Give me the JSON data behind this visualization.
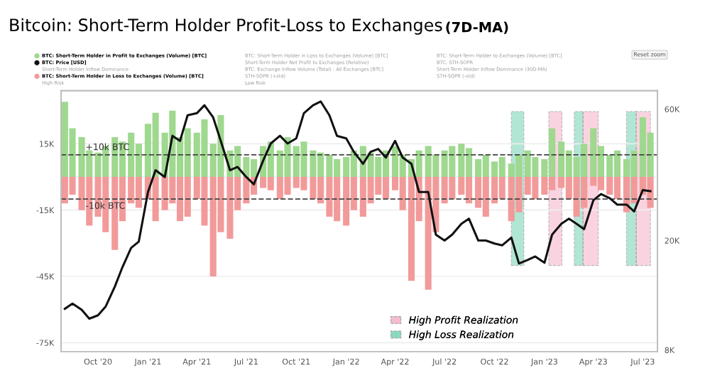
{
  "chart_data": {
    "type": "bar",
    "title": "Bitcoin: Short-Term Holder Profit-Loss to Exchanges",
    "subtitle": "(7D-MA)",
    "x": [
      "2020-08-01",
      "2020-08-15",
      "2020-09-01",
      "2020-09-15",
      "2020-10-01",
      "2020-10-15",
      "2020-11-01",
      "2020-11-15",
      "2020-12-01",
      "2020-12-15",
      "2021-01-01",
      "2021-01-15",
      "2021-02-01",
      "2021-02-15",
      "2021-03-01",
      "2021-03-15",
      "2021-04-01",
      "2021-04-15",
      "2021-05-01",
      "2021-05-15",
      "2021-06-01",
      "2021-06-15",
      "2021-07-01",
      "2021-07-15",
      "2021-08-01",
      "2021-08-15",
      "2021-09-01",
      "2021-09-15",
      "2021-10-01",
      "2021-10-15",
      "2021-11-01",
      "2021-11-15",
      "2021-12-01",
      "2021-12-15",
      "2022-01-01",
      "2022-01-15",
      "2022-02-01",
      "2022-02-15",
      "2022-03-01",
      "2022-03-15",
      "2022-04-01",
      "2022-04-15",
      "2022-05-01",
      "2022-05-15",
      "2022-06-01",
      "2022-06-15",
      "2022-07-01",
      "2022-07-15",
      "2022-08-01",
      "2022-08-15",
      "2022-09-01",
      "2022-09-15",
      "2022-10-01",
      "2022-10-15",
      "2022-11-01",
      "2022-11-15",
      "2022-12-01",
      "2022-12-15",
      "2023-01-01",
      "2023-01-15",
      "2023-02-01",
      "2023-02-15",
      "2023-03-01",
      "2023-03-15",
      "2023-04-01",
      "2023-04-15",
      "2023-05-01",
      "2023-05-15",
      "2023-06-01",
      "2023-06-15",
      "2023-07-01",
      "2023-07-15"
    ],
    "series": [
      {
        "name": "BTC: Short-Term Holder in Profit to Exchanges (Volume) [BTC]",
        "color": "#9fd88f",
        "values": [
          34000,
          22000,
          18000,
          12000,
          11000,
          14000,
          18000,
          16000,
          20000,
          15000,
          24000,
          29000,
          20000,
          30000,
          18000,
          22000,
          20000,
          26000,
          15000,
          28000,
          12000,
          14000,
          9000,
          8000,
          14000,
          16000,
          12000,
          18000,
          14000,
          16000,
          12000,
          11000,
          10000,
          8000,
          9000,
          12000,
          14000,
          11000,
          9000,
          12000,
          14000,
          10000,
          8000,
          12000,
          14000,
          10000,
          12000,
          14000,
          15000,
          13000,
          8000,
          10000,
          7000,
          9000,
          6000,
          10000,
          12000,
          9000,
          8000,
          22000,
          16000,
          12000,
          9000,
          15000,
          22000,
          14000,
          10000,
          12000,
          8000,
          12000,
          27000,
          20000
        ]
      },
      {
        "name": "BTC: Short-Term Holder in Loss to Exchanges (Volume) [BTC]",
        "color": "#f29a9a",
        "values": [
          -12000,
          -8000,
          -15000,
          -22000,
          -18000,
          -25000,
          -33000,
          -20000,
          -12000,
          -14000,
          -10000,
          -20000,
          -15000,
          -12000,
          -20000,
          -18000,
          -10000,
          -22000,
          -45000,
          -25000,
          -28000,
          -15000,
          -12000,
          -8000,
          -5000,
          -6000,
          -10000,
          -8000,
          -5000,
          -6000,
          -10000,
          -12000,
          -18000,
          -20000,
          -22000,
          -15000,
          -18000,
          -12000,
          -8000,
          -10000,
          -6000,
          -15000,
          -47000,
          -20000,
          -51000,
          -25000,
          -12000,
          -10000,
          -8000,
          -12000,
          -14000,
          -18000,
          -12000,
          -10000,
          -20000,
          -16000,
          -8000,
          -10000,
          -8000,
          -6000,
          -5000,
          -10000,
          -18000,
          -14000,
          -4000,
          -6000,
          -8000,
          -10000,
          -16000,
          -12000,
          -8000,
          -14000
        ]
      },
      {
        "name": "BTC: Price [USD]",
        "type": "line",
        "axis": "y2",
        "color": "#111111",
        "values": [
          11300,
          11800,
          11200,
          10400,
          10700,
          11500,
          13600,
          16000,
          18800,
          19800,
          30000,
          36000,
          34000,
          48000,
          46000,
          57000,
          58000,
          62000,
          56000,
          46000,
          36000,
          37000,
          34000,
          32000,
          39000,
          45000,
          48000,
          45000,
          47000,
          58000,
          62000,
          64000,
          57000,
          48000,
          47000,
          42000,
          38000,
          42000,
          43000,
          40000,
          46000,
          40000,
          38000,
          30000,
          30000,
          21000,
          20000,
          21000,
          23000,
          24000,
          20000,
          20000,
          19500,
          19200,
          20500,
          16500,
          17000,
          17500,
          16600,
          21000,
          23000,
          24000,
          23000,
          22000,
          28000,
          29500,
          28500,
          27000,
          27000,
          25500,
          30500,
          30200
        ]
      }
    ],
    "xlim": [
      "2020-07-25",
      "2023-07-28"
    ],
    "xticks": [
      {
        "value": "2020-10-01",
        "label": "Oct '20"
      },
      {
        "value": "2021-01-01",
        "label": "Jan '21"
      },
      {
        "value": "2021-04-01",
        "label": "Apr '21"
      },
      {
        "value": "2021-07-01",
        "label": "Jul '21"
      },
      {
        "value": "2021-10-01",
        "label": "Oct '21"
      },
      {
        "value": "2022-01-01",
        "label": "Jan '22"
      },
      {
        "value": "2022-04-01",
        "label": "Apr '22"
      },
      {
        "value": "2022-07-01",
        "label": "Jul '22"
      },
      {
        "value": "2022-10-01",
        "label": "Oct '22"
      },
      {
        "value": "2023-01-01",
        "label": "Jan '23"
      },
      {
        "value": "2023-04-01",
        "label": "Apr '23"
      },
      {
        "value": "2023-07-01",
        "label": "Jul '23"
      }
    ],
    "ylim": [
      -79000,
      39000
    ],
    "yticks": [
      {
        "value": 15000,
        "label": "15K"
      },
      {
        "value": -15000,
        "label": "-15K"
      },
      {
        "value": -45000,
        "label": "-45K"
      },
      {
        "value": -75000,
        "label": "-75K"
      }
    ],
    "log": "y2",
    "y2lim": [
      7900,
      70000
    ],
    "y2ticks": [
      {
        "value": 8000,
        "label": "8K"
      },
      {
        "value": 20000,
        "label": "20K"
      },
      {
        "value": 60000,
        "label": "60K"
      }
    ],
    "grid": "y",
    "legend": "top left",
    "stacked": true,
    "line_style": "solid",
    "marker": "none",
    "ref_lines": [
      {
        "axis": "y",
        "value": 10000,
        "label": "+10k BTC",
        "color": "#444444",
        "line_style": "dashed"
      },
      {
        "axis": "y",
        "value": -10000,
        "label": "-10k BTC",
        "color": "#444444",
        "line_style": "dashed"
      }
    ],
    "bands": [
      {
        "axis": "x",
        "from": "2022-11-01",
        "to": "2022-11-24",
        "color": "#7fd6b8",
        "label": "High Loss Realization"
      },
      {
        "axis": "x",
        "from": "2023-01-09",
        "to": "2023-02-02",
        "color": "#f7b6cc",
        "label": "High Profit Realization"
      },
      {
        "axis": "x",
        "from": "2023-02-25",
        "to": "2023-03-13",
        "color": "#7fd6b8"
      },
      {
        "axis": "x",
        "from": "2023-03-13",
        "to": "2023-04-10",
        "color": "#f7b6cc"
      },
      {
        "axis": "x",
        "from": "2023-06-01",
        "to": "2023-06-19",
        "color": "#7fd6b8"
      },
      {
        "axis": "x",
        "from": "2023-06-19",
        "to": "2023-07-15",
        "color": "#f7b6cc"
      }
    ],
    "annotations": [
      "Short-Term Holder Inflow Dominance",
      "High Risk",
      "BTC: Short-Term Holder in Loss to Exchanges (Volume) [BTC]",
      "Short-Term Holder Net Profit to Exchanges (Relative)",
      "BTC: Exchange Inflow Volume (Total) - All Exchanges [BTC]",
      "STH-SOPR (+std)",
      "Low Risk",
      "BTC: Short-Term Holder to Exchanges (Volume) [BTC]",
      "BTC: STH-SOPR",
      "Short-Term Holder Inflow Dominance (30D-MA)",
      "STH-SOPR (-std)",
      "Reset zoom"
    ]
  }
}
